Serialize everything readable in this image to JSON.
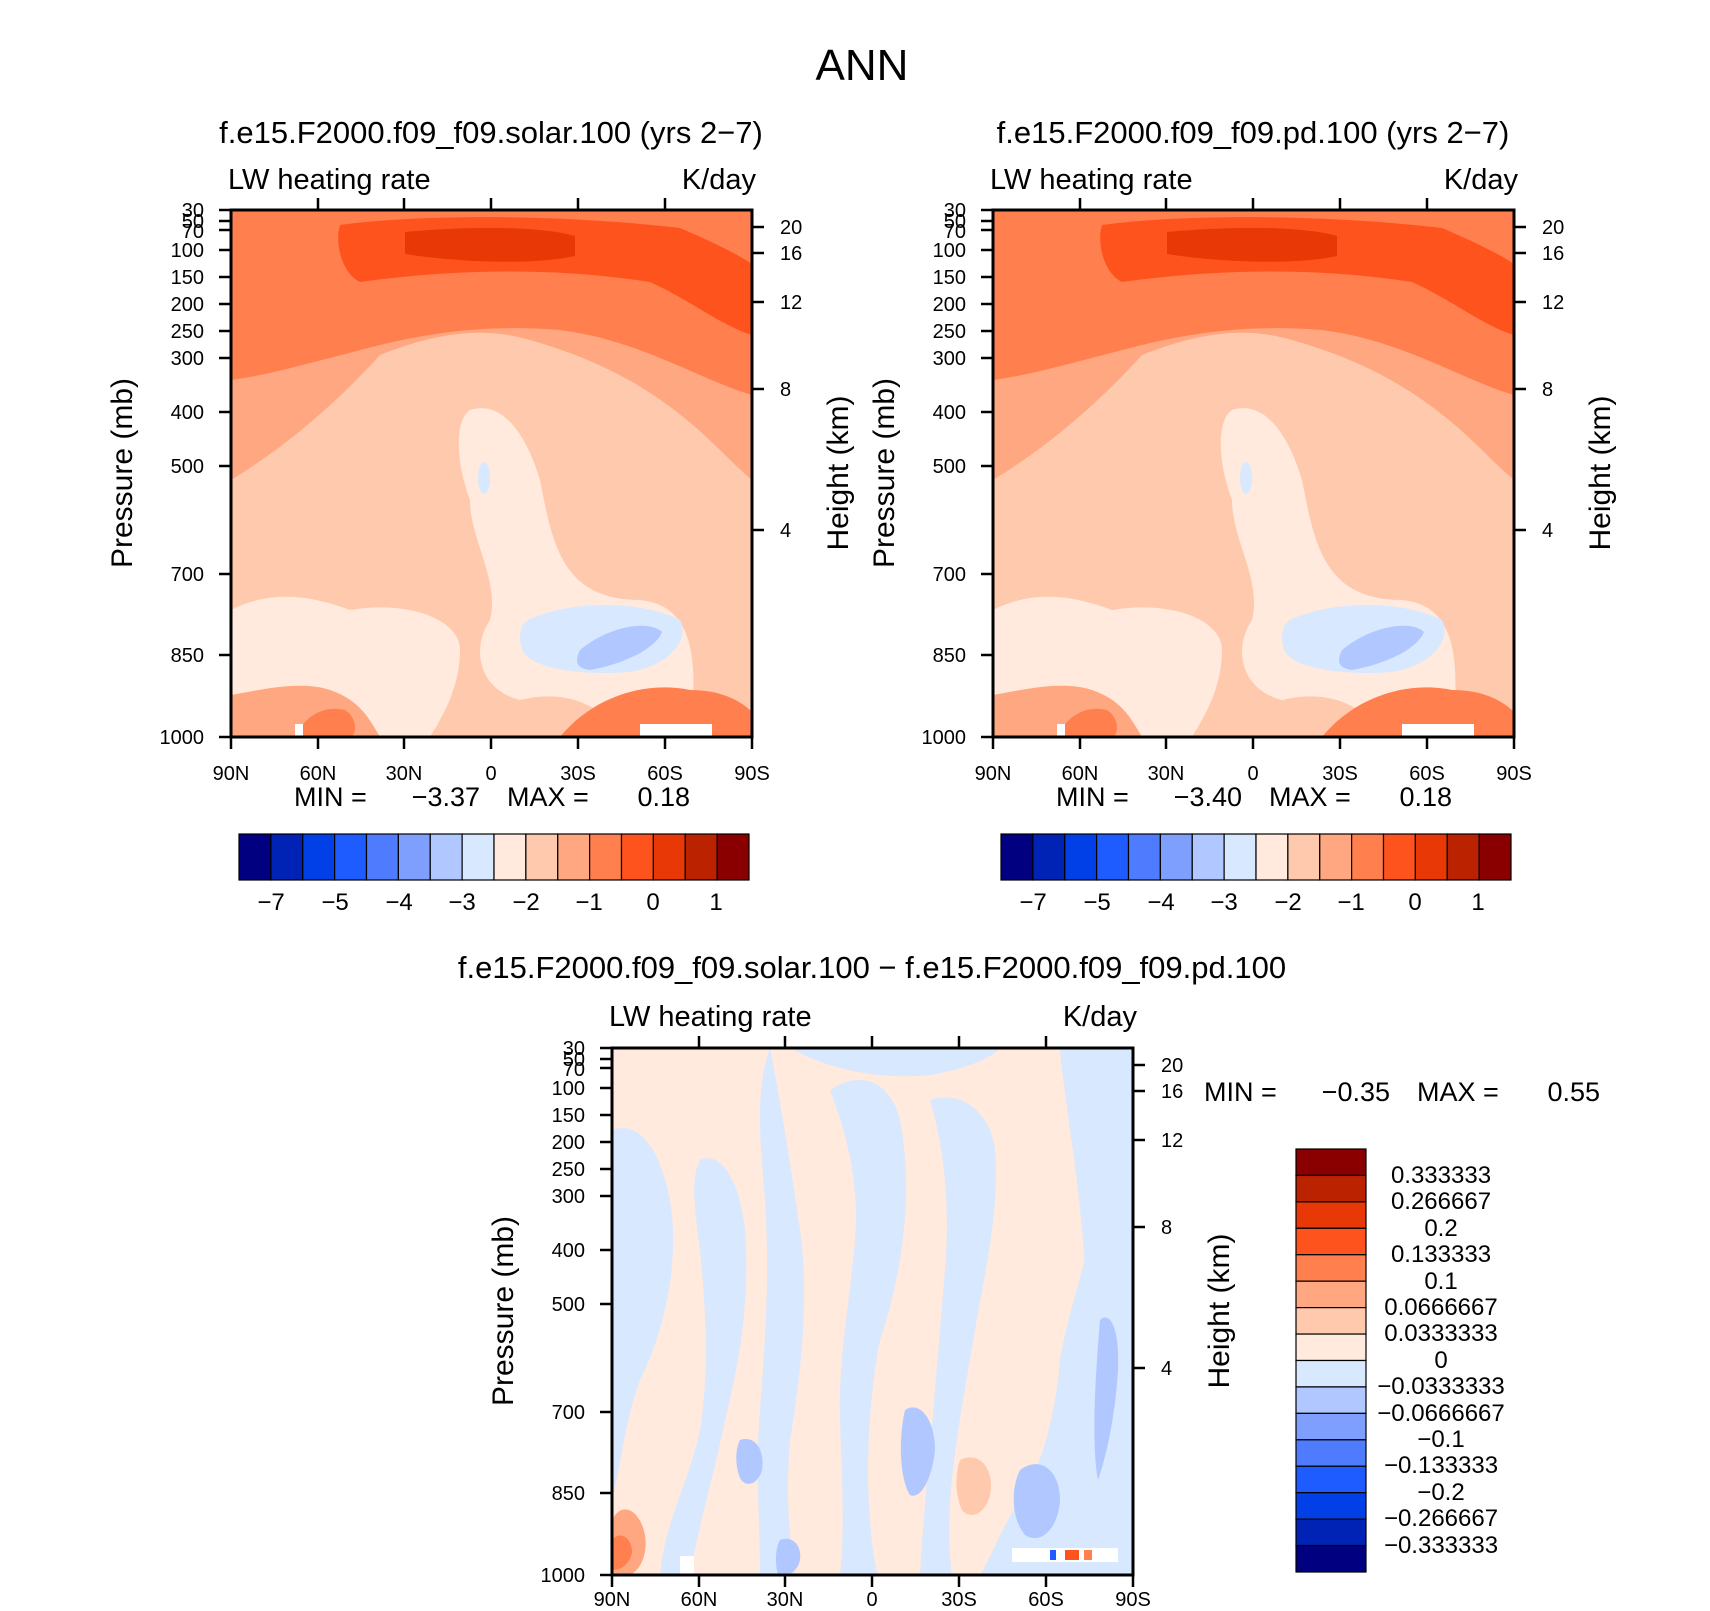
{
  "figure": {
    "title": "ANN"
  },
  "chart_data": [
    {
      "type": "heatmap",
      "title": "f.e15.F2000.f09_f09.solar.100 (yrs 2−7)",
      "variable": "LW heating rate",
      "units": "K/day",
      "xlabel": "",
      "ylabel": "Pressure (mb)",
      "ylabel_right": "Height (km)",
      "x_ticks": [
        "90N",
        "60N",
        "30N",
        "0",
        "30S",
        "60S",
        "90S"
      ],
      "y_ticks": [
        "30",
        "50",
        "70",
        "100",
        "150",
        "200",
        "250",
        "300",
        "400",
        "500",
        "700",
        "850",
        "1000"
      ],
      "right_ticks": [
        "20",
        "16",
        "12",
        "8",
        "4"
      ],
      "y_scale": "log",
      "ylim": [
        1000,
        30
      ],
      "xlim": [
        "90N",
        "90S"
      ],
      "min_label": "MIN =",
      "min_value": "−3.37",
      "max_label": "MAX =",
      "max_value": "0.18",
      "colorbar": {
        "orientation": "horizontal",
        "colors": [
          "#000080",
          "#0023b5",
          "#0040e6",
          "#1e5cff",
          "#4f7cff",
          "#7f9fff",
          "#b0c8ff",
          "#d8e8ff",
          "#ffeadd",
          "#ffc9ad",
          "#ffa780",
          "#ff7f4f",
          "#ff531e",
          "#e83806",
          "#bb2200",
          "#8a0000"
        ],
        "labels": [
          "−7",
          "−5",
          "−4",
          "−3",
          "−2",
          "−1",
          "0",
          "1"
        ]
      }
    },
    {
      "type": "heatmap",
      "title": "f.e15.F2000.f09_f09.pd.100 (yrs 2−7)",
      "variable": "LW heating rate",
      "units": "K/day",
      "xlabel": "",
      "ylabel": "Pressure (mb)",
      "ylabel_right": "Height (km)",
      "x_ticks": [
        "90N",
        "60N",
        "30N",
        "0",
        "30S",
        "60S",
        "90S"
      ],
      "y_ticks": [
        "30",
        "50",
        "70",
        "100",
        "150",
        "200",
        "250",
        "300",
        "400",
        "500",
        "700",
        "850",
        "1000"
      ],
      "right_ticks": [
        "20",
        "16",
        "12",
        "8",
        "4"
      ],
      "y_scale": "log",
      "ylim": [
        1000,
        30
      ],
      "xlim": [
        "90N",
        "90S"
      ],
      "min_label": "MIN =",
      "min_value": "−3.40",
      "max_label": "MAX =",
      "max_value": "0.18",
      "colorbar": {
        "orientation": "horizontal",
        "colors": [
          "#000080",
          "#0023b5",
          "#0040e6",
          "#1e5cff",
          "#4f7cff",
          "#7f9fff",
          "#b0c8ff",
          "#d8e8ff",
          "#ffeadd",
          "#ffc9ad",
          "#ffa780",
          "#ff7f4f",
          "#ff531e",
          "#e83806",
          "#bb2200",
          "#8a0000"
        ],
        "labels": [
          "−7",
          "−5",
          "−4",
          "−3",
          "−2",
          "−1",
          "0",
          "1"
        ]
      }
    },
    {
      "type": "heatmap",
      "title": "f.e15.F2000.f09_f09.solar.100 − f.e15.F2000.f09_f09.pd.100",
      "variable": "LW heating rate",
      "units": "K/day",
      "xlabel": "",
      "ylabel": "Pressure (mb)",
      "ylabel_right": "Height (km)",
      "x_ticks": [
        "90N",
        "60N",
        "30N",
        "0",
        "30S",
        "60S",
        "90S"
      ],
      "y_ticks": [
        "30",
        "50",
        "70",
        "100",
        "150",
        "200",
        "250",
        "300",
        "400",
        "500",
        "700",
        "850",
        "1000"
      ],
      "right_ticks": [
        "20",
        "16",
        "12",
        "8",
        "4"
      ],
      "y_scale": "log",
      "ylim": [
        1000,
        30
      ],
      "xlim": [
        "90N",
        "90S"
      ],
      "min_label": "MIN =",
      "min_value": "−0.35",
      "max_label": "MAX =",
      "max_value": "0.55",
      "colorbar": {
        "orientation": "vertical",
        "colors": [
          "#8a0000",
          "#bb2200",
          "#e83806",
          "#ff531e",
          "#ff7f4f",
          "#ffa780",
          "#ffc9ad",
          "#ffeadd",
          "#d8e8ff",
          "#b0c8ff",
          "#7f9fff",
          "#4f7cff",
          "#1e5cff",
          "#0040e6",
          "#0023b5",
          "#000080"
        ],
        "labels": [
          "0.333333",
          "0.266667",
          "0.2",
          "0.133333",
          "0.1",
          "0.0666667",
          "0.0333333",
          "0",
          "−0.0333333",
          "−0.0666667",
          "−0.1",
          "−0.133333",
          "−0.2",
          "−0.266667",
          "−0.333333"
        ]
      }
    }
  ]
}
